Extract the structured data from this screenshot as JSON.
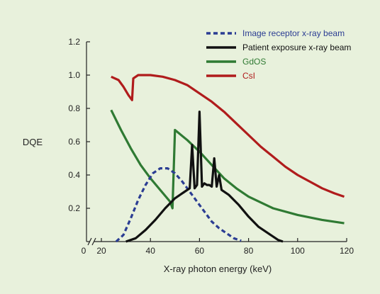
{
  "colors": {
    "background": "#e8f1dc",
    "image_receptor": "#2b3d93",
    "patient_exposure": "#111111",
    "gdos": "#2f7a33",
    "csi": "#b01c1c",
    "axis": "#222222"
  },
  "chart_data": {
    "type": "line",
    "title": "",
    "xlabel": "X-ray photon energy (keV)",
    "ylabel": "DQE",
    "xlim": [
      20,
      120
    ],
    "ylim": [
      0,
      1.2
    ],
    "x_axis_break": true,
    "x_ticks": [
      0,
      20,
      40,
      60,
      80,
      100,
      120
    ],
    "y_ticks": [
      0.2,
      0.4,
      0.6,
      0.8,
      1.0,
      1.2
    ],
    "x_tick_labels": [
      "0",
      "20",
      "40",
      "60",
      "80",
      "100",
      "120"
    ],
    "y_tick_labels": [
      "0.2",
      "0.4",
      "0.6",
      "0.8",
      "1.0",
      "1.2"
    ],
    "grid": false,
    "legend_position": "top-right",
    "series": [
      {
        "name": "Image receptor x-ray beam",
        "style": "dashed",
        "color_key": "image_receptor",
        "points": [
          [
            26,
            0
          ],
          [
            29,
            0.04
          ],
          [
            32,
            0.14
          ],
          [
            35,
            0.25
          ],
          [
            38,
            0.34
          ],
          [
            41,
            0.41
          ],
          [
            44,
            0.44
          ],
          [
            47,
            0.44
          ],
          [
            50,
            0.41
          ],
          [
            53,
            0.36
          ],
          [
            56,
            0.3
          ],
          [
            59,
            0.24
          ],
          [
            62,
            0.18
          ],
          [
            65,
            0.12
          ],
          [
            68,
            0.08
          ],
          [
            71,
            0.05
          ],
          [
            74,
            0.02
          ],
          [
            77,
            0.005
          ]
        ]
      },
      {
        "name": "Patient exposure x-ray beam",
        "style": "solid",
        "color_key": "patient_exposure",
        "points": [
          [
            30,
            0
          ],
          [
            34,
            0.02
          ],
          [
            38,
            0.07
          ],
          [
            42,
            0.13
          ],
          [
            46,
            0.2
          ],
          [
            50,
            0.26
          ],
          [
            54,
            0.3
          ],
          [
            56,
            0.32
          ],
          [
            57,
            0.58
          ],
          [
            58,
            0.32
          ],
          [
            59,
            0.34
          ],
          [
            60,
            0.78
          ],
          [
            61,
            0.33
          ],
          [
            62,
            0.35
          ],
          [
            63,
            0.34
          ],
          [
            64,
            0.34
          ],
          [
            65,
            0.33
          ],
          [
            66,
            0.5
          ],
          [
            67,
            0.33
          ],
          [
            68,
            0.4
          ],
          [
            69,
            0.31
          ],
          [
            72,
            0.28
          ],
          [
            76,
            0.22
          ],
          [
            80,
            0.15
          ],
          [
            84,
            0.09
          ],
          [
            88,
            0.05
          ],
          [
            92,
            0.01
          ],
          [
            94,
            0
          ]
        ]
      },
      {
        "name": "GdOS",
        "style": "solid",
        "color_key": "gdos",
        "points": [
          [
            24,
            0.79
          ],
          [
            28,
            0.67
          ],
          [
            32,
            0.56
          ],
          [
            36,
            0.46
          ],
          [
            40,
            0.38
          ],
          [
            44,
            0.31
          ],
          [
            48,
            0.24
          ],
          [
            49,
            0.2
          ],
          [
            50,
            0.67
          ],
          [
            55,
            0.61
          ],
          [
            60,
            0.54
          ],
          [
            65,
            0.46
          ],
          [
            70,
            0.38
          ],
          [
            75,
            0.32
          ],
          [
            80,
            0.27
          ],
          [
            90,
            0.2
          ],
          [
            100,
            0.16
          ],
          [
            110,
            0.13
          ],
          [
            119,
            0.11
          ]
        ]
      },
      {
        "name": "CsI",
        "style": "solid",
        "color_key": "csi",
        "points": [
          [
            24,
            0.99
          ],
          [
            27,
            0.97
          ],
          [
            29,
            0.93
          ],
          [
            31,
            0.88
          ],
          [
            32.5,
            0.85
          ],
          [
            33,
            0.98
          ],
          [
            35,
            1.0
          ],
          [
            40,
            1.0
          ],
          [
            45,
            0.99
          ],
          [
            50,
            0.97
          ],
          [
            55,
            0.94
          ],
          [
            60,
            0.89
          ],
          [
            65,
            0.84
          ],
          [
            70,
            0.78
          ],
          [
            75,
            0.71
          ],
          [
            80,
            0.64
          ],
          [
            85,
            0.57
          ],
          [
            90,
            0.51
          ],
          [
            95,
            0.45
          ],
          [
            100,
            0.4
          ],
          [
            105,
            0.36
          ],
          [
            110,
            0.32
          ],
          [
            115,
            0.29
          ],
          [
            119,
            0.27
          ]
        ]
      }
    ]
  }
}
